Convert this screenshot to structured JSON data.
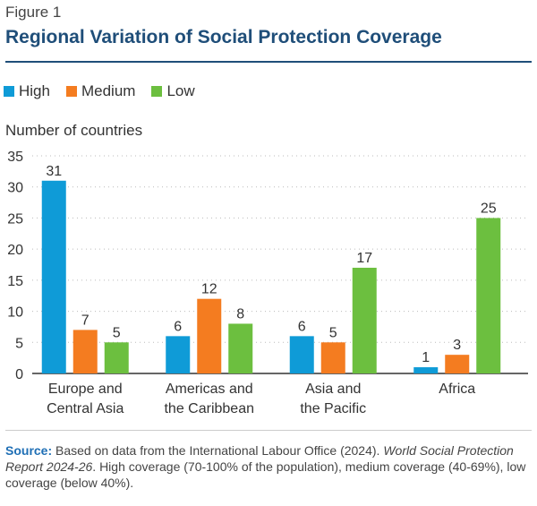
{
  "figure": {
    "label": "Figure 1",
    "title": "Regional Variation of Social Protection Coverage"
  },
  "colors": {
    "high": "#0f9bd7",
    "medium": "#f47c20",
    "low": "#6cbf3f",
    "title": "#1f4e79"
  },
  "chart_data": {
    "type": "bar",
    "title": "Regional Variation of Social Protection Coverage",
    "ylabel": "Number of countries",
    "xlabel": "",
    "ylim": [
      0,
      35
    ],
    "yticks": [
      0,
      5,
      10,
      15,
      20,
      25,
      30,
      35
    ],
    "grid": true,
    "legend_position": "top-left",
    "categories": [
      [
        "Europe and",
        "Central Asia"
      ],
      [
        "Americas and",
        "the Caribbean"
      ],
      [
        "Asia and",
        "the Pacific"
      ],
      [
        "Africa"
      ]
    ],
    "series": [
      {
        "name": "High",
        "key": "high",
        "values": [
          31,
          6,
          6,
          1
        ]
      },
      {
        "name": "Medium",
        "key": "medium",
        "values": [
          7,
          12,
          5,
          3
        ]
      },
      {
        "name": "Low",
        "key": "low",
        "values": [
          5,
          8,
          17,
          25
        ]
      }
    ]
  },
  "source": {
    "label": "Source:",
    "text1": " Based on data from the International Labour Office (2024). ",
    "italic": "World Social Protection Report 2024-26",
    "text2": ". High coverage (70-100% of the population), medium coverage (40-69%), low coverage (below 40%)."
  }
}
